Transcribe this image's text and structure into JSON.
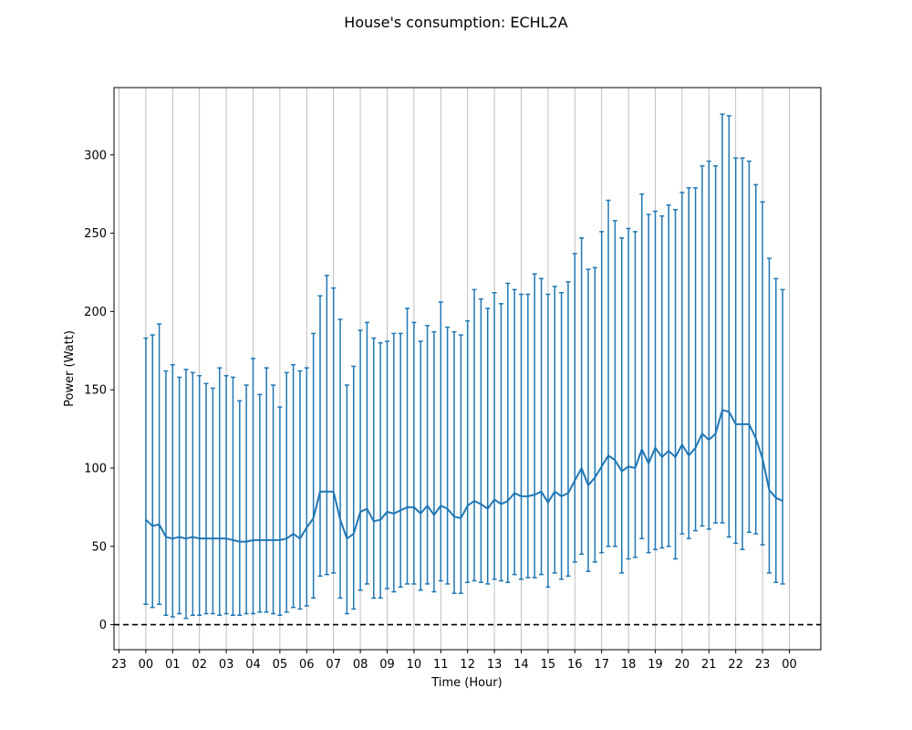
{
  "chart_data": {
    "type": "line",
    "title": "House's consumption: ECHL2A",
    "xlabel": "Time (Hour)",
    "ylabel": "Power (Watt)",
    "x_tick_labels": [
      "23",
      "00",
      "01",
      "02",
      "03",
      "04",
      "05",
      "06",
      "07",
      "08",
      "09",
      "10",
      "11",
      "12",
      "13",
      "14",
      "15",
      "16",
      "17",
      "18",
      "19",
      "20",
      "21",
      "22",
      "23",
      "00"
    ],
    "y_ticks": [
      0,
      50,
      100,
      150,
      200,
      250,
      300
    ],
    "ylim": [
      -16,
      343
    ],
    "grid": "vertical",
    "reference_line": 0,
    "color": "#1f77b4",
    "x_hours": [
      0,
      0.25,
      0.5,
      0.75,
      1,
      1.25,
      1.5,
      1.75,
      2,
      2.25,
      2.5,
      2.75,
      3,
      3.25,
      3.5,
      3.75,
      4,
      4.25,
      4.5,
      4.75,
      5,
      5.25,
      5.5,
      5.75,
      6,
      6.25,
      6.5,
      6.75,
      7,
      7.25,
      7.5,
      7.75,
      8,
      8.25,
      8.5,
      8.75,
      9,
      9.25,
      9.5,
      9.75,
      10,
      10.25,
      10.5,
      10.75,
      11,
      11.25,
      11.5,
      11.75,
      12,
      12.25,
      12.5,
      12.75,
      13,
      13.25,
      13.5,
      13.75,
      14,
      14.25,
      14.5,
      14.75,
      15,
      15.25,
      15.5,
      15.75,
      16,
      16.25,
      16.5,
      16.75,
      17,
      17.25,
      17.5,
      17.75,
      18,
      18.25,
      18.5,
      18.75,
      19,
      19.25,
      19.5,
      19.75,
      20,
      20.25,
      20.5,
      20.75,
      21,
      21.25,
      21.5,
      21.75,
      22,
      22.25,
      22.5,
      22.75,
      23,
      23.25,
      23.5,
      23.75
    ],
    "series": [
      {
        "mean": [
          67,
          63,
          64,
          56,
          55,
          56,
          55,
          56,
          55,
          55,
          55,
          55,
          55,
          54,
          53,
          53,
          54,
          54,
          54,
          54,
          54,
          55,
          58,
          55,
          62,
          68,
          85,
          85,
          85,
          67,
          55,
          58,
          72,
          74,
          66,
          67,
          72,
          71,
          73,
          75,
          75,
          71,
          76,
          70,
          76,
          74,
          69,
          68,
          76,
          79,
          77,
          74,
          80,
          77,
          79,
          84,
          82,
          82,
          83,
          85,
          78,
          85,
          82,
          84,
          92,
          100,
          89,
          94,
          101,
          108,
          105,
          98,
          101,
          100,
          112,
          103,
          113,
          107,
          111,
          107,
          115,
          108,
          113,
          122,
          118,
          122,
          137,
          136,
          128,
          128,
          128,
          119,
          106,
          86,
          81,
          79
        ],
        "upper": [
          183,
          185,
          192,
          162,
          166,
          158,
          163,
          161,
          159,
          154,
          151,
          164,
          159,
          158,
          143,
          153,
          170,
          147,
          164,
          153,
          139,
          161,
          166,
          162,
          164,
          186,
          210,
          223,
          215,
          195,
          153,
          165,
          188,
          193,
          183,
          180,
          181,
          186,
          186,
          202,
          193,
          181,
          191,
          187,
          206,
          190,
          187,
          185,
          194,
          214,
          208,
          202,
          212,
          205,
          218,
          214,
          211,
          211,
          224,
          221,
          211,
          216,
          212,
          219,
          237,
          247,
          227,
          228,
          251,
          271,
          258,
          247,
          253,
          251,
          275,
          262,
          264,
          261,
          268,
          265,
          276,
          279,
          279,
          293,
          296,
          293,
          326,
          325,
          298,
          298,
          296,
          281,
          270,
          234,
          221,
          214
        ],
        "lower": [
          13,
          11,
          13,
          6,
          5,
          7,
          4,
          6,
          6,
          7,
          7,
          6,
          7,
          6,
          6,
          7,
          7,
          8,
          8,
          7,
          6,
          8,
          11,
          10,
          12,
          17,
          31,
          32,
          33,
          17,
          7,
          10,
          22,
          26,
          17,
          17,
          23,
          21,
          24,
          26,
          26,
          22,
          26,
          21,
          28,
          26,
          20,
          20,
          27,
          28,
          27,
          26,
          29,
          28,
          27,
          32,
          29,
          30,
          30,
          32,
          24,
          33,
          29,
          31,
          40,
          45,
          34,
          40,
          46,
          50,
          50,
          33,
          42,
          43,
          55,
          46,
          48,
          49,
          50,
          42,
          58,
          55,
          60,
          63,
          61,
          65,
          65,
          56,
          52,
          48,
          59,
          58,
          51,
          33,
          27,
          26
        ]
      }
    ]
  }
}
